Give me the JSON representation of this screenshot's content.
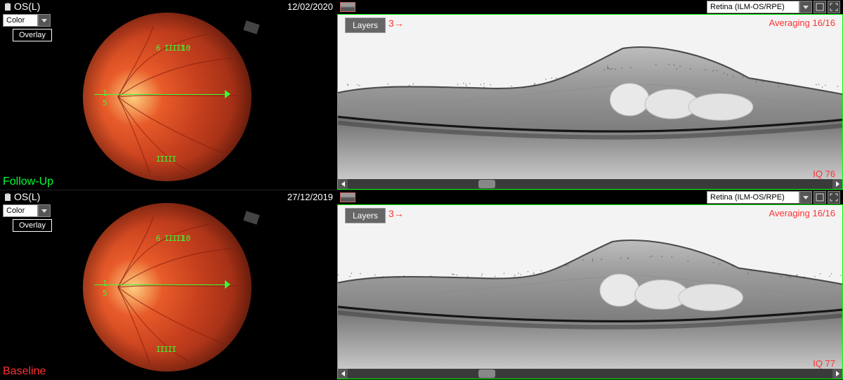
{
  "panels": [
    {
      "eye": "OS(L)",
      "date": "12/02/2020",
      "colorMode": "Color",
      "overlayBtn": "Overlay",
      "tag": "Follow-Up",
      "tagColor": "#00ff33",
      "retinaMode": "Retina (ILM-OS/RPE)",
      "layersBtn": "Layers",
      "sliceIndicator": "3→",
      "averaging": "Averaging 16/16",
      "iq": "IQ 76",
      "fundus": {
        "markers": {
          "m1": "1",
          "m5": "5",
          "m6": "6",
          "m10": "10",
          "t1": "IIIII",
          "t2": "IIIII"
        }
      },
      "colors": {
        "frame": "#00ff00",
        "accentRed": "#ff3333",
        "scanLine": "#33ff33"
      },
      "oct": {
        "bulgeCenter": 0.62,
        "bulgeHeight": 44,
        "baseTop": 0.38
      }
    },
    {
      "eye": "OS(L)",
      "date": "27/12/2019",
      "colorMode": "Color",
      "overlayBtn": "Overlay",
      "tag": "Baseline",
      "tagColor": "#ff3333",
      "retinaMode": "Retina (ILM-OS/RPE)",
      "layersBtn": "Layers",
      "sliceIndicator": "3→",
      "averaging": "Averaging 16/16",
      "iq": "IQ 77",
      "fundus": {
        "markers": {
          "m1": "1",
          "m5": "5",
          "m6": "6",
          "m10": "10",
          "t1": "IIIII",
          "t2": "IIIII"
        }
      },
      "colors": {
        "frame": "#00ff00",
        "accentRed": "#ff3333",
        "scanLine": "#33ff33"
      },
      "oct": {
        "bulgeCenter": 0.6,
        "bulgeHeight": 40,
        "baseTop": 0.38
      }
    }
  ]
}
